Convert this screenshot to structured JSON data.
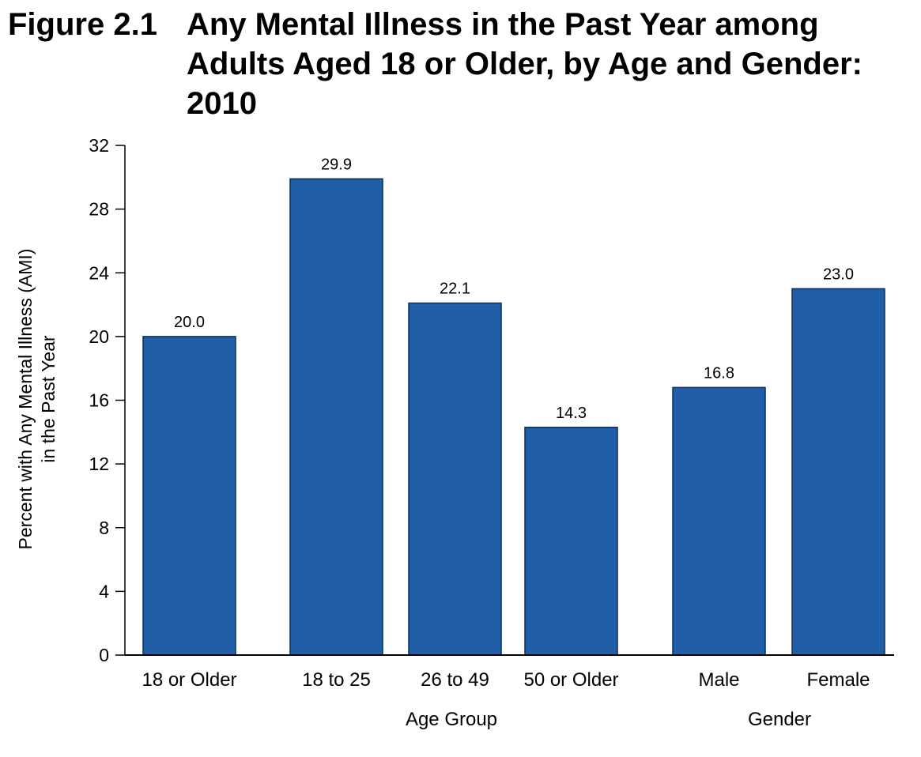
{
  "figure": {
    "number": "Figure 2.1",
    "title": "Any Mental Illness in the Past Year among Adults Aged 18 or Older, by Age and Gender: 2010"
  },
  "chart_data": {
    "type": "bar",
    "categories": [
      "18 or Older",
      "18 to 25",
      "26 to 49",
      "50 or Older",
      "Male",
      "Female"
    ],
    "values": [
      20.0,
      29.9,
      22.1,
      14.3,
      16.8,
      23.0
    ],
    "data_labels": [
      "20.0",
      "29.9",
      "22.1",
      "14.3",
      "16.8",
      "23.0"
    ],
    "groups": [
      {
        "name": "Age Group",
        "categories": [
          "18 to 25",
          "26 to 49",
          "50 or Older"
        ]
      },
      {
        "name": "Gender",
        "categories": [
          "Male",
          "Female"
        ]
      }
    ],
    "ylabel_lines": [
      "Percent with Any Mental Illness (AMI)",
      "in the Past Year"
    ],
    "ylim": [
      0,
      32
    ],
    "yticks": [
      0,
      4,
      8,
      12,
      16,
      20,
      24,
      28,
      32
    ],
    "grid": false,
    "bar_color": "#205ea8"
  }
}
